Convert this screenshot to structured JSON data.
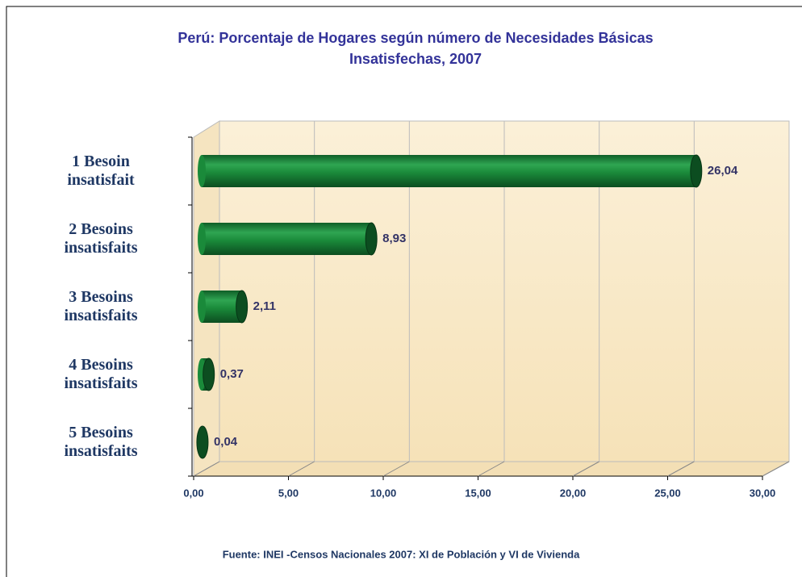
{
  "chart_data": {
    "type": "bar",
    "orientation": "horizontal",
    "title": "Perú: Porcentaje de Hogares según número de Necesidades Básicas Insatisfechas, 2007",
    "categories": [
      "1 Besoin insatisfait",
      "2 Besoins insatisfaits",
      "3 Besoins insatisfaits",
      "4 Besoins insatisfaits",
      "5 Besoins insatisfaits"
    ],
    "values": [
      26.04,
      8.93,
      2.11,
      0.37,
      0.04
    ],
    "value_labels": [
      "26,04",
      "8,93",
      "2,11",
      "0,37",
      "0,04"
    ],
    "color": "#1a8a3a",
    "xlim": [
      0,
      30
    ],
    "xticks": [
      {
        "value": 0,
        "label": "0,00"
      },
      {
        "value": 5,
        "label": "5,00"
      },
      {
        "value": 10,
        "label": "10,00"
      },
      {
        "value": 15,
        "label": "15,00"
      },
      {
        "value": 20,
        "label": "20,00"
      },
      {
        "value": 25,
        "label": "25,00"
      },
      {
        "value": 30,
        "label": "30,00"
      }
    ],
    "grid": true,
    "source": "Fuente: INEI -Censos Nacionales 2007: XI de Población y VI de Vivienda"
  }
}
